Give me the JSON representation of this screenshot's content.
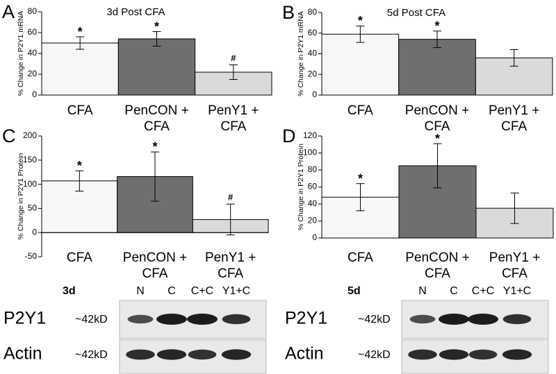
{
  "chart_data": [
    {
      "type": "bar",
      "panel": "A",
      "title": "3d Post CFA",
      "ylabel": "% Change in P2Y1 mRNA",
      "categories": [
        "CFA",
        "PenCON + CFA",
        "PenY1 + CFA"
      ],
      "values": [
        50,
        54,
        22
      ],
      "errors": [
        6,
        7,
        7
      ],
      "markers": [
        "*",
        "*",
        "#"
      ],
      "colors": [
        "#f7f7f7",
        "#6f6f6f",
        "#dadada"
      ],
      "ylim": [
        0,
        80
      ],
      "yticks": [
        0,
        20,
        40,
        60,
        80
      ],
      "grid": false
    },
    {
      "type": "bar",
      "panel": "B",
      "title": "5d Post CFA",
      "ylabel": "% Change in P2Y1 mRNA",
      "categories": [
        "CFA",
        "PenCON + CFA",
        "PenY1 + CFA"
      ],
      "values": [
        59,
        54,
        36
      ],
      "errors": [
        8,
        8,
        8
      ],
      "markers": [
        "*",
        "*",
        null
      ],
      "colors": [
        "#f7f7f7",
        "#6f6f6f",
        "#dadada"
      ],
      "ylim": [
        0,
        80
      ],
      "yticks": [
        0,
        20,
        40,
        60,
        80
      ],
      "grid": false
    },
    {
      "type": "bar",
      "panel": "C",
      "ylabel": "% Change in P2Y1 Protein",
      "categories": [
        "CFA",
        "PenCON + CFA",
        "PenY1 + CFA"
      ],
      "values": [
        107,
        116,
        27
      ],
      "errors": [
        21,
        51,
        32
      ],
      "markers": [
        "*",
        "*",
        "#"
      ],
      "colors": [
        "#f7f7f7",
        "#6f6f6f",
        "#dadada"
      ],
      "ylim": [
        -50,
        200
      ],
      "yticks": [
        -50,
        0,
        50,
        100,
        150,
        200
      ],
      "grid": false
    },
    {
      "type": "bar",
      "panel": "D",
      "ylabel": "% Change in P2Y1 Protein",
      "categories": [
        "CFA",
        "PenCON + CFA",
        "PenY1 + CFA"
      ],
      "values": [
        48,
        85,
        35
      ],
      "errors": [
        16,
        26,
        18
      ],
      "markers": [
        "*",
        "*",
        null
      ],
      "colors": [
        "#f7f7f7",
        "#6f6f6f",
        "#dadada"
      ],
      "ylim": [
        0,
        120
      ],
      "yticks": [
        0,
        20,
        40,
        60,
        80,
        100,
        120
      ],
      "grid": false
    }
  ],
  "blots": [
    {
      "label": "3d",
      "lanes": [
        "N",
        "C",
        "C+C",
        "Y1+C"
      ],
      "rows": [
        {
          "name": "P2Y1",
          "size": "~42kD"
        },
        {
          "name": "Actin",
          "size": "~42kD"
        }
      ]
    },
    {
      "label": "5d",
      "lanes": [
        "N",
        "C",
        "C+C",
        "Y1+C"
      ],
      "rows": [
        {
          "name": "P2Y1",
          "size": "~42kD"
        },
        {
          "name": "Actin",
          "size": "~42kD"
        }
      ]
    }
  ]
}
